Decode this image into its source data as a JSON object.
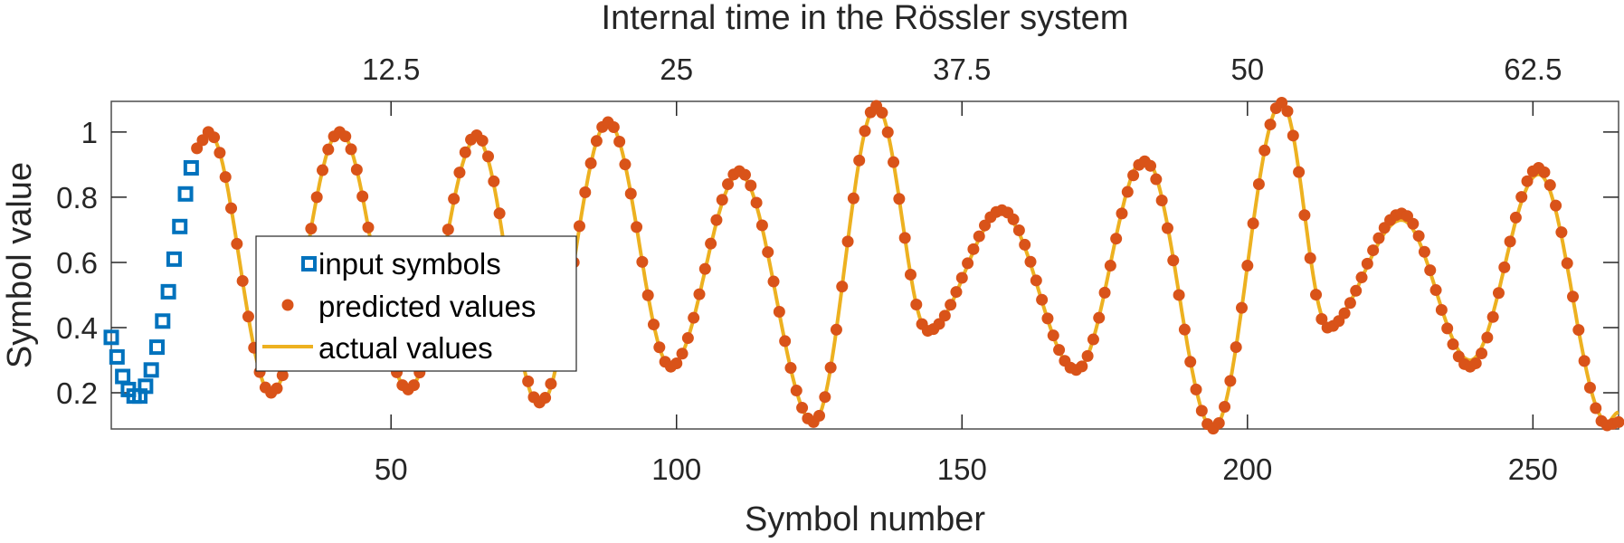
{
  "chart_data": {
    "type": "line",
    "title": "",
    "xlabel": "Symbol number",
    "ylabel": "Symbol value",
    "top_xlabel": "Internal time in the Rössler system",
    "xlim": [
      1,
      265
    ],
    "ylim": [
      0.089,
      1.094
    ],
    "grid": false,
    "legend_position": "inside-left",
    "x_ticks": [
      50,
      100,
      150,
      200,
      250
    ],
    "x_tick_labels": [
      "50",
      "100",
      "150",
      "200",
      "250"
    ],
    "top_x_ticks_symbol": [
      50,
      100,
      150,
      200,
      250
    ],
    "top_x_tick_labels": [
      "12.5",
      "25",
      "37.5",
      "50",
      "62.5"
    ],
    "y_ticks": [
      0.2,
      0.4,
      0.6,
      0.8,
      1.0
    ],
    "y_tick_labels": [
      "0.2",
      "0.4",
      "0.6",
      "0.8",
      "1"
    ],
    "legend": [
      {
        "label": "input symbols",
        "marker": "square",
        "color": "#0072BD"
      },
      {
        "label": "predicted values",
        "marker": "dot",
        "color": "#D95319"
      },
      {
        "label": "actual values",
        "marker": "line",
        "color": "#EDB120"
      }
    ],
    "series": [
      {
        "name": "input symbols",
        "x": [
          1,
          2,
          3,
          4,
          5,
          6,
          7,
          8,
          9,
          10,
          11,
          12,
          13,
          14,
          15
        ],
        "values": [
          0.37,
          0.31,
          0.25,
          0.21,
          0.19,
          0.19,
          0.22,
          0.27,
          0.34,
          0.42,
          0.51,
          0.61,
          0.71,
          0.81,
          0.89
        ]
      },
      {
        "name": "actual values",
        "extrema_x": [
          16,
          18,
          29,
          41,
          53,
          65,
          76,
          88,
          99,
          111,
          124,
          135,
          144,
          157,
          170,
          182,
          194,
          206,
          214,
          227,
          239,
          251,
          263,
          265
        ],
        "extrema_values": [
          0.96,
          1.0,
          0.2,
          1.0,
          0.21,
          0.98,
          0.16,
          1.03,
          0.28,
          0.87,
          0.11,
          1.08,
          0.39,
          0.75,
          0.27,
          0.92,
          0.09,
          1.09,
          0.41,
          0.73,
          0.3,
          0.87,
          0.11,
          0.14
        ]
      },
      {
        "name": "predicted values",
        "x_start": 16,
        "x_end": 265,
        "note_offsets": "closely tracks actual values; slightly overshoots peaks after symbol 210",
        "extrema_x": [
          16,
          18,
          29,
          41,
          53,
          65,
          76,
          88,
          99,
          111,
          124,
          135,
          144,
          157,
          170,
          182,
          194,
          206,
          214,
          227,
          239,
          251,
          263,
          265
        ],
        "extrema_values": [
          0.95,
          1.0,
          0.2,
          1.0,
          0.21,
          0.99,
          0.17,
          1.03,
          0.28,
          0.88,
          0.11,
          1.08,
          0.39,
          0.76,
          0.27,
          0.91,
          0.09,
          1.09,
          0.4,
          0.75,
          0.28,
          0.89,
          0.1,
          0.11
        ]
      }
    ]
  },
  "colors": {
    "input": "#0072BD",
    "predicted": "#D95319",
    "actual": "#EDB120",
    "axis": "#262626",
    "box": "#4d4d4d"
  }
}
